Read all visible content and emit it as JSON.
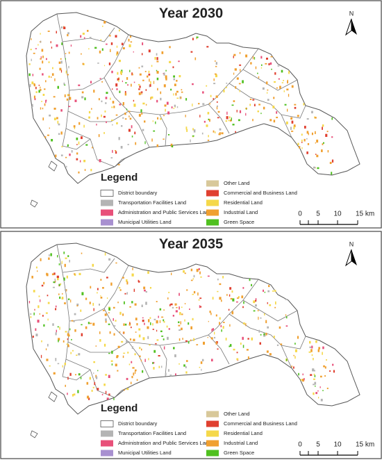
{
  "panels": [
    {
      "title": "Year 2030",
      "north": "N",
      "legend": {
        "title": "Legend",
        "items": [
          {
            "label": "District boundary",
            "color": "#ffffff"
          },
          {
            "label": "Transportation Facilities Land",
            "color": "#b4b4b4"
          },
          {
            "label": "Administration and Public Services Land",
            "color": "#e8507a"
          },
          {
            "label": "Municipal Utilities Land",
            "color": "#a890d0"
          },
          {
            "label": "Other Land",
            "color": "#d8c89a"
          },
          {
            "label": "Commercial and Business Land",
            "color": "#e04030"
          },
          {
            "label": "Residential Land",
            "color": "#f5d84a"
          },
          {
            "label": "Industrial Land",
            "color": "#f0a030"
          },
          {
            "label": "Green Space",
            "color": "#50c020"
          }
        ]
      },
      "scale_labels": [
        "0",
        "5",
        "10",
        "15 km"
      ]
    },
    {
      "title": "Year 2035",
      "north": "N",
      "legend": {
        "title": "Legend",
        "items": [
          {
            "label": "District boundary",
            "color": "#ffffff"
          },
          {
            "label": "Transportation Facilities Land",
            "color": "#b4b4b4"
          },
          {
            "label": "Administration and Public Services Land",
            "color": "#e8507a"
          },
          {
            "label": "Municipal Utilities Land",
            "color": "#a890d0"
          },
          {
            "label": "Other Land",
            "color": "#d8c89a"
          },
          {
            "label": "Commercial and Business Land",
            "color": "#e04030"
          },
          {
            "label": "Residential Land",
            "color": "#f5d84a"
          },
          {
            "label": "Industrial Land",
            "color": "#f0a030"
          },
          {
            "label": "Green Space",
            "color": "#50c020"
          }
        ]
      },
      "scale_labels": [
        "0",
        "5",
        "10",
        "15 km"
      ]
    }
  ]
}
